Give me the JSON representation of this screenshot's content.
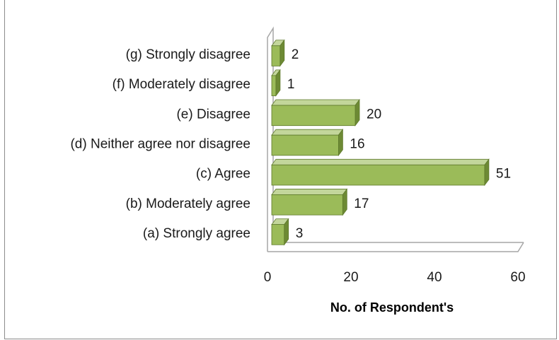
{
  "chart_data": {
    "type": "bar",
    "orientation": "horizontal",
    "categories": [
      "(a) Strongly agree",
      "(b) Moderately agree",
      "(c) Agree",
      "(d) Neither agree nor disagree",
      "(e) Disagree",
      "(f) Moderately disagree",
      "(g) Strongly disagree"
    ],
    "values": [
      3,
      17,
      51,
      16,
      20,
      1,
      2
    ],
    "xlim": [
      0,
      60
    ],
    "xticks": [
      "0",
      "20",
      "40",
      "60"
    ],
    "xlabel": "No. of Respondent's",
    "style": "3d",
    "grid": false,
    "legend": "none",
    "colors": {
      "bar_front": "#9bbb59",
      "bar_top": "#c3d69b",
      "bar_side": "#6d8a34",
      "bar_edge": "#5f7a2c",
      "axis": "#a6a6a6"
    }
  }
}
